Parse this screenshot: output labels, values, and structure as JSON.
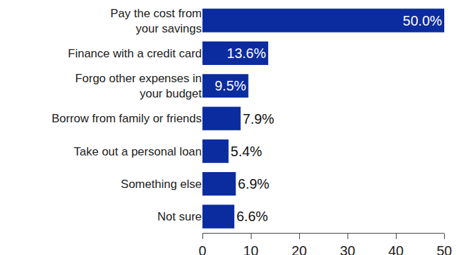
{
  "chart_data": {
    "type": "bar",
    "orientation": "horizontal",
    "categories": [
      "Pay the cost from\nyour savings",
      "Finance with a credit card",
      "Forgo other expenses in\nyour budget",
      "Borrow from family or friends",
      "Take out a personal loan",
      "Something else",
      "Not sure"
    ],
    "values": [
      50.0,
      13.6,
      9.5,
      7.9,
      5.4,
      6.9,
      6.6
    ],
    "value_labels": [
      "50.0%",
      "13.6%",
      "9.5%",
      "7.9%",
      "5.4%",
      "6.9%",
      "6.6%"
    ],
    "data_labels": true,
    "color": "#0b2c9f",
    "xlim": [
      0,
      50
    ],
    "xticks": [
      0,
      10,
      20,
      30,
      40,
      50
    ],
    "grid": false
  }
}
